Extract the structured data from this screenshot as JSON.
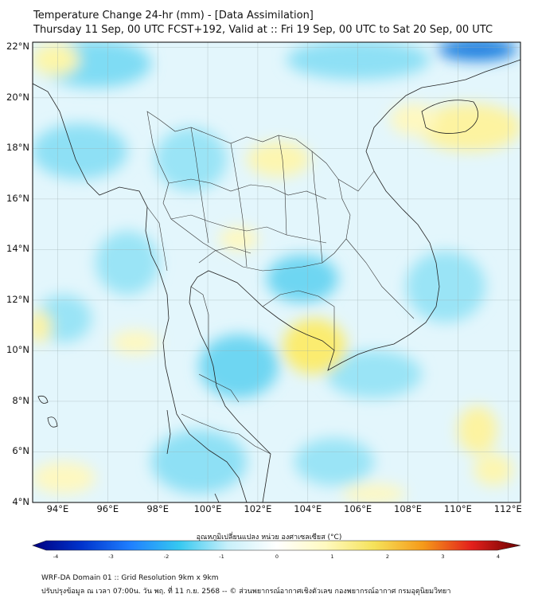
{
  "header": {
    "title": "Temperature Change 24-hr (mm) - [Data Assimilation]",
    "subtitle": "Thursday 11 Sep, 00 UTC FCST+192, Valid at :: Fri 19 Sep, 00 UTC to Sat 20 Sep, 00 UTC"
  },
  "axes": {
    "lat_labels": [
      "22°N",
      "20°N",
      "18°N",
      "16°N",
      "14°N",
      "12°N",
      "10°N",
      "8°N",
      "6°N",
      "4°N"
    ],
    "lon_labels": [
      "94°E",
      "96°E",
      "98°E",
      "100°E",
      "102°E",
      "104°E",
      "106°E",
      "108°E",
      "110°E",
      "112°E"
    ],
    "lat_range": [
      4,
      22.2
    ],
    "lon_range": [
      93,
      112.5
    ]
  },
  "colorbar": {
    "label": "อุณหภูมิเปลี่ยนแปลง หน่วย องศาเซลเซียส (°C)",
    "ticks": [
      "-4",
      "-3",
      "-2",
      "-1",
      "0",
      "1",
      "2",
      "3",
      "4"
    ],
    "range": [
      -4,
      4
    ],
    "colors": [
      "#000080",
      "#0033cc",
      "#1f7fff",
      "#35c8f0",
      "#c8f0fa",
      "#ffffff",
      "#fffac0",
      "#f5e25a",
      "#f59a1a",
      "#e3201c",
      "#6a0000"
    ]
  },
  "footer": {
    "line1": "WRF-DA Domain 01 :: Grid Resolution 9km x 9km",
    "line2": "ปรับปรุงข้อมูล ณ เวลา 07:00น. วัน พฤ. ที่ 11 ก.ย. 2568 -- © ส่วนพยากรณ์อากาศเชิงตัวเลข กองพยากรณ์อากาศ กรมอุตุนิยมวิทยา"
  }
}
